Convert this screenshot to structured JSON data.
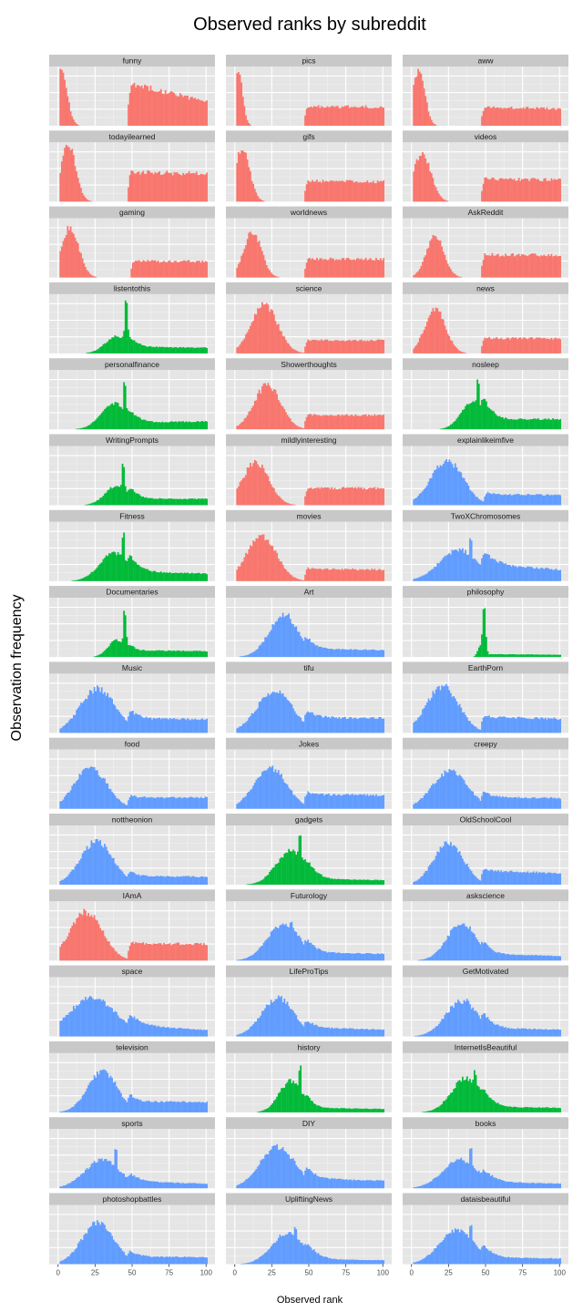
{
  "chart_data": {
    "type": "histogram-facets",
    "title": "Observed ranks by subreddit",
    "xlabel": "Observed rank",
    "ylabel": "Observation frequency",
    "xlim": [
      -6,
      106
    ],
    "x_ticks": [
      0,
      25,
      50,
      75,
      100
    ],
    "x_tick_labels": [
      "0",
      "25",
      "50",
      "75",
      "100"
    ],
    "layout": {
      "columns": 3,
      "rows": 16
    },
    "colors": {
      "red": "#F8766D",
      "green": "#00BA38",
      "blue": "#619CFF"
    },
    "panels": [
      {
        "name": "funny",
        "color": "red",
        "shape": "A",
        "p1": [
          2,
          4,
          1.0
        ],
        "p2": [
          47,
          101,
          0.75,
          0.42
        ]
      },
      {
        "name": "pics",
        "color": "red",
        "shape": "A",
        "p1": [
          2,
          3,
          1.0
        ],
        "p2": [
          47,
          101,
          0.34,
          0.33
        ]
      },
      {
        "name": "aww",
        "color": "red",
        "shape": "A",
        "p1": [
          5,
          4,
          1.0
        ],
        "p2": [
          47,
          101,
          0.33,
          0.3
        ]
      },
      {
        "name": "todayilearned",
        "color": "red",
        "shape": "A",
        "p1": [
          7,
          5,
          1.0
        ],
        "p2": [
          47,
          101,
          0.52,
          0.49
        ]
      },
      {
        "name": "gifs",
        "color": "red",
        "shape": "A",
        "p1": [
          5,
          5,
          0.92
        ],
        "p2": [
          47,
          101,
          0.36,
          0.35
        ]
      },
      {
        "name": "videos",
        "color": "red",
        "shape": "A",
        "p1": [
          7,
          6,
          0.85
        ],
        "p2": [
          47,
          101,
          0.4,
          0.38
        ]
      },
      {
        "name": "gaming",
        "color": "red",
        "shape": "A",
        "p1": [
          8,
          6,
          0.88
        ],
        "p2": [
          49,
          101,
          0.29,
          0.28
        ]
      },
      {
        "name": "worldnews",
        "color": "red",
        "shape": "A",
        "p1": [
          12,
          6,
          0.8
        ],
        "p2": [
          47,
          101,
          0.33,
          0.32
        ]
      },
      {
        "name": "AskReddit",
        "color": "red",
        "shape": "A",
        "p1": [
          16,
          6,
          0.72
        ],
        "p2": [
          47,
          101,
          0.4,
          0.4
        ]
      },
      {
        "name": "listentothis",
        "color": "green",
        "shape": "B",
        "p1": [
          40,
          8,
          0.3
        ],
        "spike": [
          46,
          0.97
        ],
        "p2": [
          47,
          101,
          0.12,
          0.1
        ]
      },
      {
        "name": "science",
        "color": "red",
        "shape": "A",
        "p1": [
          20,
          9,
          0.85
        ],
        "p2": [
          47,
          101,
          0.23,
          0.23
        ]
      },
      {
        "name": "news",
        "color": "red",
        "shape": "A",
        "p1": [
          16,
          7,
          0.78
        ],
        "p2": [
          47,
          101,
          0.27,
          0.26
        ]
      },
      {
        "name": "personalfinance",
        "color": "green",
        "shape": "B",
        "p1": [
          38,
          9,
          0.45
        ],
        "spike": [
          45,
          0.92
        ],
        "p2": [
          47,
          101,
          0.12,
          0.14
        ]
      },
      {
        "name": "Showerthoughts",
        "color": "red",
        "shape": "A",
        "p1": [
          22,
          9,
          0.78
        ],
        "p2": [
          47,
          101,
          0.25,
          0.25
        ]
      },
      {
        "name": "nosleep",
        "color": "green",
        "shape": "B",
        "p1": [
          42,
          8,
          0.5
        ],
        "spike": [
          45,
          0.92
        ],
        "p2": [
          47,
          101,
          0.18,
          0.18
        ]
      },
      {
        "name": "WritingPrompts",
        "color": "green",
        "shape": "B",
        "p1": [
          40,
          8,
          0.35
        ],
        "spike": [
          44,
          0.8
        ],
        "p2": [
          47,
          101,
          0.12,
          0.11
        ]
      },
      {
        "name": "mildlyinteresting",
        "color": "red",
        "shape": "A",
        "p1": [
          14,
          9,
          0.75
        ],
        "p2": [
          47,
          101,
          0.3,
          0.3
        ]
      },
      {
        "name": "explainlikeimfive",
        "color": "blue",
        "shape": "A",
        "p1": [
          24,
          11,
          0.78
        ],
        "p2": [
          49,
          101,
          0.19,
          0.18
        ]
      },
      {
        "name": "Fitness",
        "color": "green",
        "shape": "B",
        "p1": [
          38,
          10,
          0.5
        ],
        "spike": [
          44,
          0.92
        ],
        "p2": [
          47,
          101,
          0.17,
          0.13
        ]
      },
      {
        "name": "movies",
        "color": "red",
        "shape": "A",
        "p1": [
          18,
          10,
          0.8
        ],
        "p2": [
          47,
          101,
          0.22,
          0.2
        ]
      },
      {
        "name": "TwoXChromosomes",
        "color": "blue",
        "shape": "B",
        "p1": [
          32,
          13,
          0.55
        ],
        "spike": [
          40,
          0.78
        ],
        "p2": [
          47,
          101,
          0.3,
          0.2
        ]
      },
      {
        "name": "Documentaries",
        "color": "green",
        "shape": "B",
        "p1": [
          40,
          6,
          0.3
        ],
        "spike": [
          45,
          0.85
        ],
        "p2": [
          47,
          101,
          0.12,
          0.1
        ]
      },
      {
        "name": "Art",
        "color": "blue",
        "shape": "B",
        "p1": [
          33,
          10,
          0.72
        ],
        "spike": [
          36,
          0.8
        ],
        "p2": [
          47,
          101,
          0.15,
          0.12
        ]
      },
      {
        "name": "philosophy",
        "color": "green",
        "shape": "B",
        "p1": [
          47,
          2,
          0.22
        ],
        "spike": [
          49,
          0.97
        ],
        "p2": [
          51,
          101,
          0.05,
          0.04
        ]
      },
      {
        "name": "Music",
        "color": "blue",
        "shape": "A",
        "p1": [
          27,
          12,
          0.78
        ],
        "p2": [
          47,
          101,
          0.25,
          0.24
        ]
      },
      {
        "name": "tifu",
        "color": "blue",
        "shape": "A",
        "p1": [
          27,
          12,
          0.74
        ],
        "p2": [
          47,
          101,
          0.27,
          0.26
        ]
      },
      {
        "name": "EarthPorn",
        "color": "blue",
        "shape": "A",
        "p1": [
          21,
          11,
          0.82
        ],
        "p2": [
          47,
          101,
          0.28,
          0.25
        ]
      },
      {
        "name": "food",
        "color": "blue",
        "shape": "A",
        "p1": [
          22,
          11,
          0.72
        ],
        "p2": [
          47,
          101,
          0.2,
          0.2
        ]
      },
      {
        "name": "Jokes",
        "color": "blue",
        "shape": "A",
        "p1": [
          24,
          11,
          0.72
        ],
        "p2": [
          47,
          101,
          0.25,
          0.24
        ]
      },
      {
        "name": "creepy",
        "color": "blue",
        "shape": "A",
        "p1": [
          26,
          12,
          0.66
        ],
        "p2": [
          47,
          101,
          0.2,
          0.19
        ]
      },
      {
        "name": "nottheonion",
        "color": "blue",
        "shape": "A",
        "p1": [
          26,
          11,
          0.76
        ],
        "p2": [
          47,
          101,
          0.15,
          0.14
        ]
      },
      {
        "name": "gadgets",
        "color": "green",
        "shape": "B",
        "p1": [
          38,
          10,
          0.6
        ],
        "spike": [
          44,
          0.9
        ],
        "p2": [
          47,
          101,
          0.1,
          0.08
        ]
      },
      {
        "name": "OldSchoolCool",
        "color": "blue",
        "shape": "A",
        "p1": [
          25,
          10,
          0.75
        ],
        "p2": [
          47,
          101,
          0.25,
          0.2
        ]
      },
      {
        "name": "IAmA",
        "color": "red",
        "shape": "A",
        "p1": [
          19,
          11,
          0.85
        ],
        "p2": [
          47,
          101,
          0.3,
          0.29
        ]
      },
      {
        "name": "Futurology",
        "color": "blue",
        "shape": "B",
        "p1": [
          33,
          11,
          0.65
        ],
        "spike": [
          38,
          0.78
        ],
        "p2": [
          47,
          101,
          0.14,
          0.12
        ]
      },
      {
        "name": "askscience",
        "color": "blue",
        "shape": "B",
        "p1": [
          34,
          10,
          0.66
        ],
        "spike": [
          36,
          0.72
        ],
        "p2": [
          47,
          101,
          0.12,
          0.08
        ]
      },
      {
        "name": "space",
        "color": "blue",
        "shape": "A",
        "p1": [
          23,
          16,
          0.68
        ],
        "p2": [
          47,
          101,
          0.2,
          0.11
        ]
      },
      {
        "name": "LifeProTips",
        "color": "blue",
        "shape": "B",
        "p1": [
          29,
          11,
          0.68
        ],
        "spike": [
          33,
          0.72
        ],
        "p2": [
          47,
          101,
          0.16,
          0.12
        ]
      },
      {
        "name": "GetMotivated",
        "color": "blue",
        "shape": "B",
        "p1": [
          34,
          11,
          0.62
        ],
        "spike": [
          38,
          0.68
        ],
        "p2": [
          47,
          101,
          0.15,
          0.12
        ]
      },
      {
        "name": "television",
        "color": "blue",
        "shape": "A",
        "p1": [
          30,
          10,
          0.72
        ],
        "p2": [
          47,
          101,
          0.19,
          0.18
        ]
      },
      {
        "name": "history",
        "color": "green",
        "shape": "B",
        "p1": [
          38,
          8,
          0.55
        ],
        "spike": [
          44,
          0.85
        ],
        "p2": [
          47,
          101,
          0.08,
          0.06
        ]
      },
      {
        "name": "InternetIsBeautiful",
        "color": "green",
        "shape": "B",
        "p1": [
          37,
          10,
          0.6
        ],
        "spike": [
          43,
          0.78
        ],
        "p2": [
          47,
          101,
          0.1,
          0.08
        ]
      },
      {
        "name": "sports",
        "color": "blue",
        "shape": "B",
        "p1": [
          30,
          12,
          0.5
        ],
        "spike": [
          39,
          0.72
        ],
        "p2": [
          47,
          101,
          0.12,
          0.08
        ]
      },
      {
        "name": "DIY",
        "color": "blue",
        "shape": "B",
        "p1": [
          29,
          12,
          0.72
        ],
        "spike": [
          26,
          0.78
        ],
        "p2": [
          47,
          101,
          0.18,
          0.13
        ]
      },
      {
        "name": "books",
        "color": "blue",
        "shape": "B",
        "p1": [
          33,
          12,
          0.5
        ],
        "spike": [
          40,
          0.75
        ],
        "p2": [
          47,
          101,
          0.12,
          0.08
        ]
      },
      {
        "name": "photoshopbattles",
        "color": "blue",
        "shape": "A",
        "p1": [
          27,
          11,
          0.72
        ],
        "p2": [
          47,
          101,
          0.14,
          0.12
        ]
      },
      {
        "name": "UpliftingNews",
        "color": "blue",
        "shape": "B",
        "p1": [
          36,
          11,
          0.55
        ],
        "spike": [
          41,
          0.72
        ],
        "p2": [
          47,
          101,
          0.09,
          0.07
        ]
      },
      {
        "name": "dataisbeautiful",
        "color": "blue",
        "shape": "B",
        "p1": [
          31,
          12,
          0.6
        ],
        "spike": [
          40,
          0.72
        ],
        "p2": [
          47,
          101,
          0.12,
          0.1
        ]
      }
    ]
  }
}
